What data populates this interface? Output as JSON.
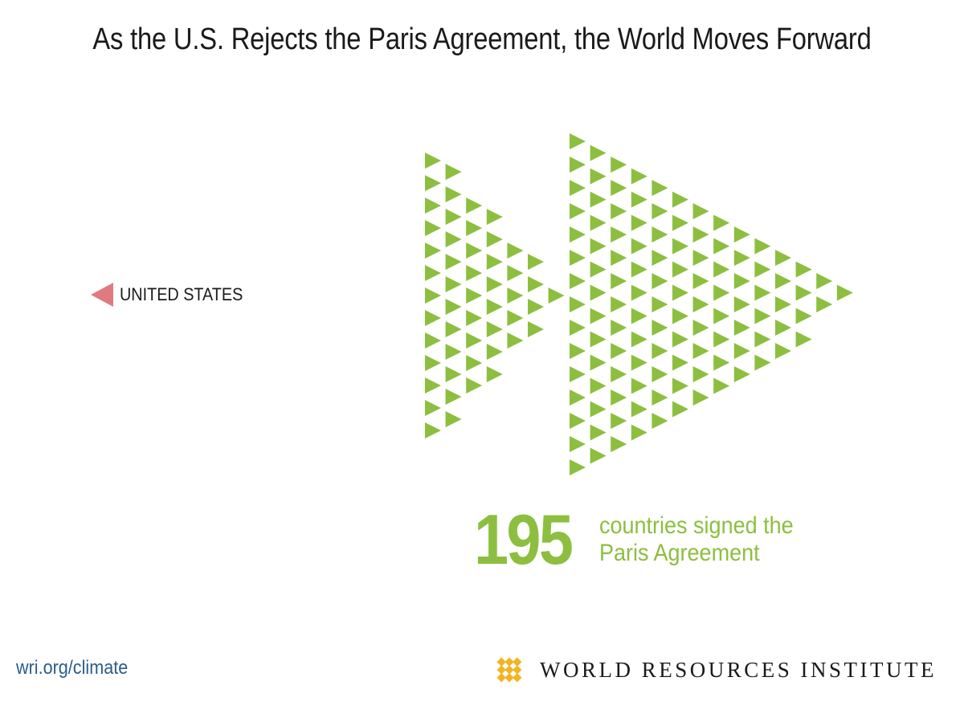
{
  "title": "As the U.S. Rejects the Paris Agreement, the World Moves Forward",
  "us_label": "UNITED STATES",
  "stat": {
    "number": "195",
    "line1": "countries signed the",
    "line2": "Paris Agreement"
  },
  "footer": {
    "url": "wri.org/climate",
    "org_name": "WORLD RESOURCES INSTITUTE"
  },
  "colors": {
    "green": "#8cbf3f",
    "us_red": "#e07a80",
    "logo_gold": "#f5b324",
    "url_blue": "#2a5d8c"
  },
  "icons": {
    "us_marker": "left-pointing-triangle",
    "logo": "wri-woven-diamond-logo",
    "country_marker": "right-pointing-triangle"
  }
}
